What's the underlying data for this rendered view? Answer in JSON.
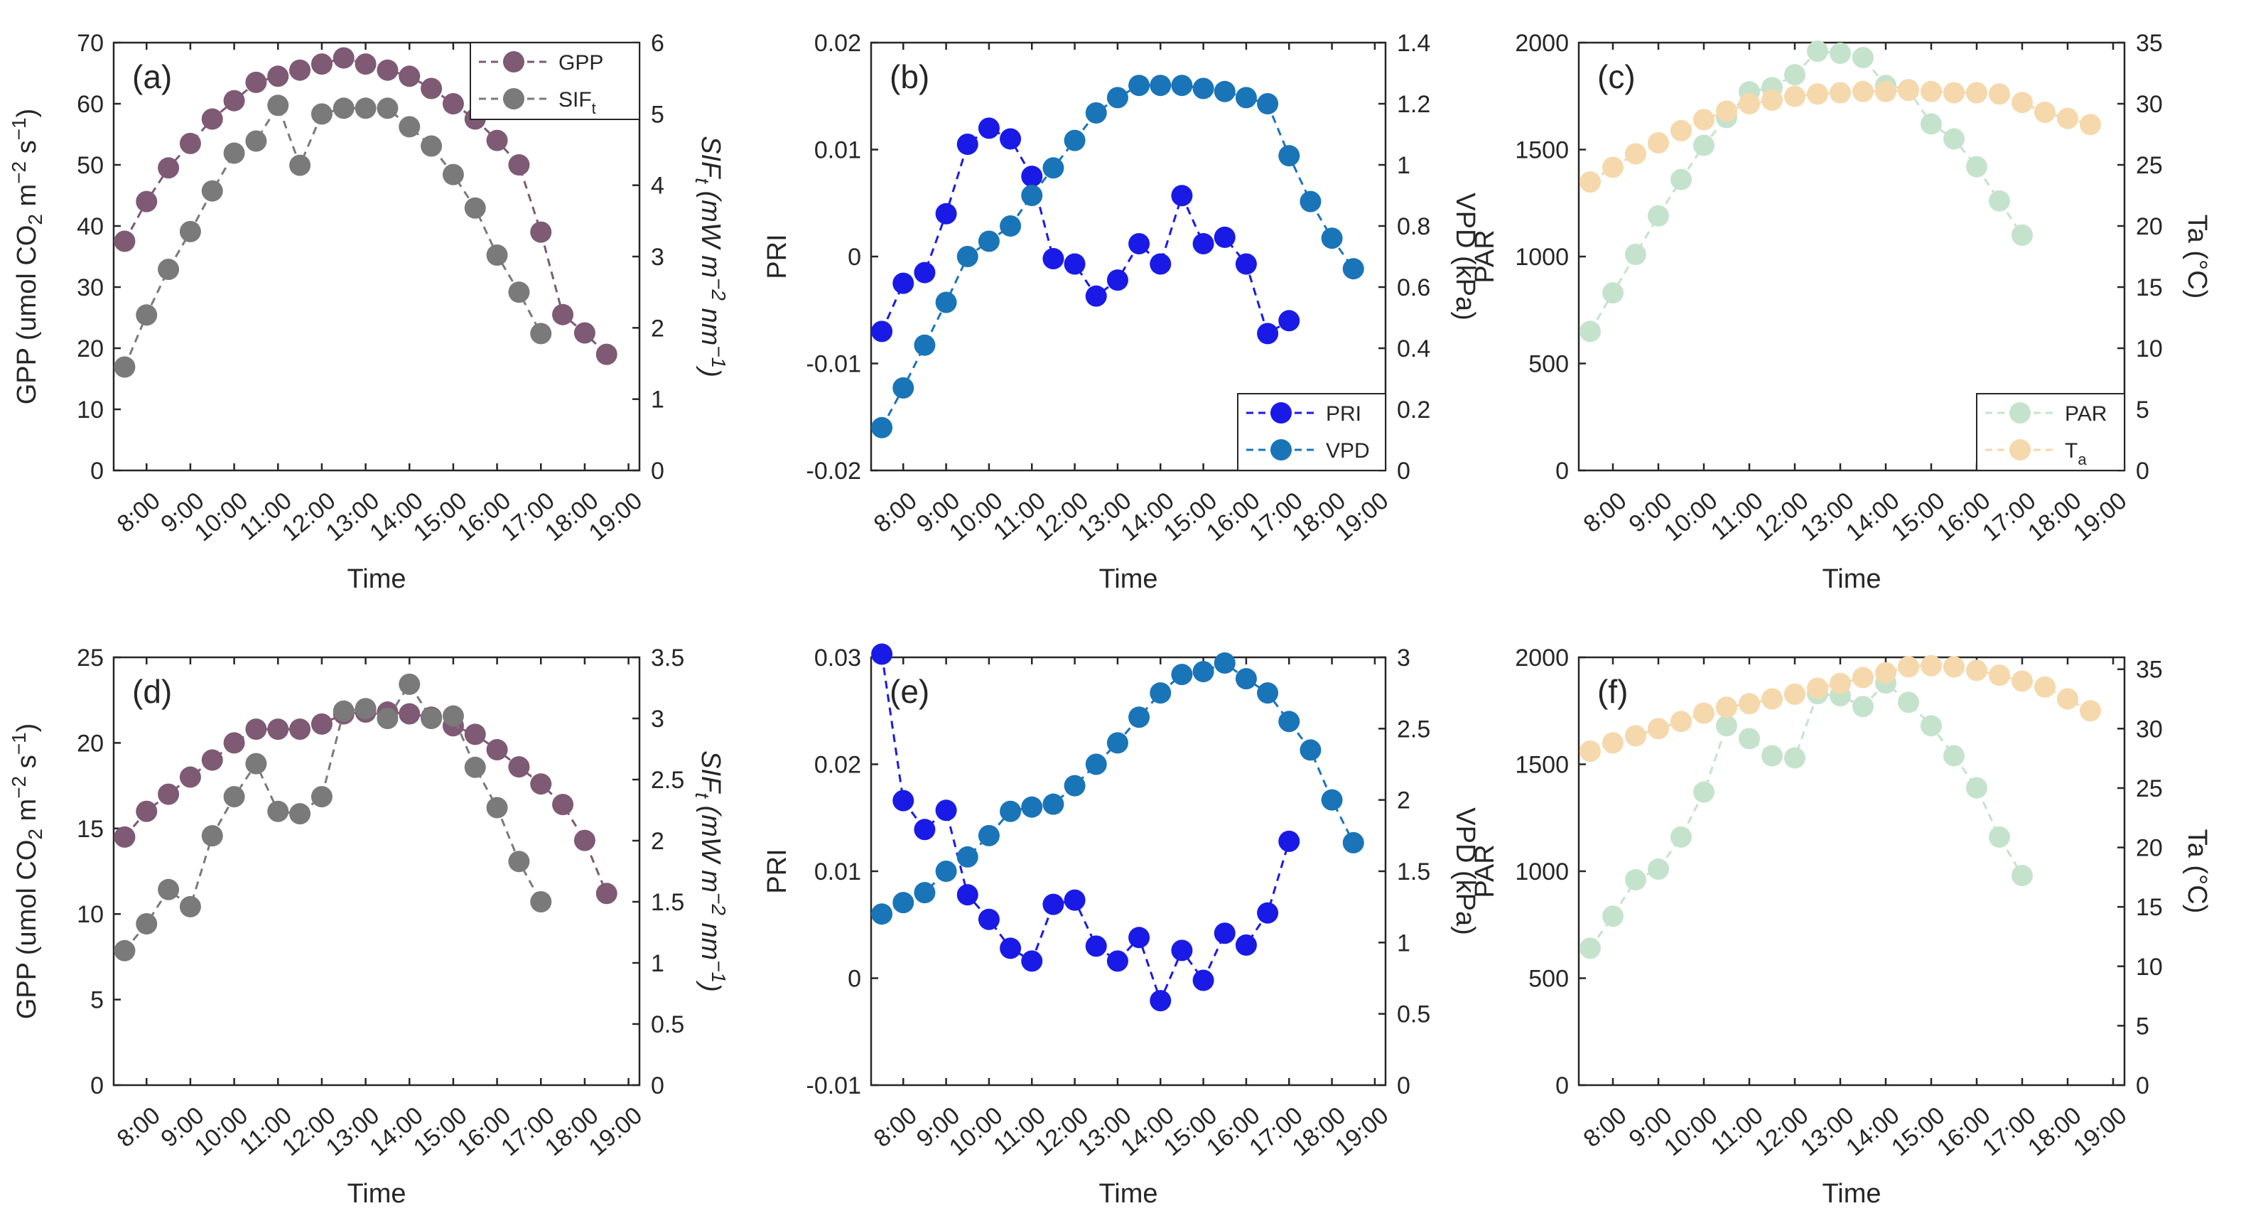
{
  "chart_data": [
    {
      "id": "a",
      "type": "line",
      "panel_label": "(a)",
      "xlabel": "Time",
      "x_ticks": [
        "8:00",
        "9:00",
        "10:00",
        "11:00",
        "12:00",
        "13:00",
        "14:00",
        "15:00",
        "16:00",
        "17:00",
        "18:00",
        "19:00"
      ],
      "xlim": [
        7.25,
        19.25
      ],
      "left_axis": {
        "label": "GPP (umol CO2 m-2 s-1)",
        "ylim": [
          0,
          70
        ],
        "ticks": [
          0,
          10,
          20,
          30,
          40,
          50,
          60,
          70
        ],
        "tick_labels": [
          "0",
          "10",
          "20",
          "30",
          "40",
          "50",
          "60",
          "70"
        ]
      },
      "right_axis": {
        "label": "SIFt (mW m-2 nm-1)",
        "ylim": [
          0,
          6
        ],
        "ticks": [
          0,
          1,
          2,
          3,
          4,
          5,
          6
        ],
        "tick_labels": [
          "0",
          "1",
          "2",
          "3",
          "4",
          "5",
          "6"
        ]
      },
      "legend": {
        "position": "top-right"
      },
      "series": [
        {
          "name": "GPP",
          "sub": "",
          "axis": "left",
          "color": "#7e5a74",
          "x": [
            7.5,
            8,
            8.5,
            9,
            9.5,
            10,
            10.5,
            11,
            11.5,
            12,
            12.5,
            13,
            13.5,
            14,
            14.5,
            15,
            15.5,
            16,
            16.5,
            17,
            17.5,
            18,
            18.5
          ],
          "y": [
            37.5,
            44,
            49.5,
            53.5,
            57.5,
            60.5,
            63.5,
            64.5,
            65.5,
            66.5,
            67.5,
            66.5,
            65.5,
            64.5,
            62.5,
            60,
            57.5,
            54,
            50,
            39,
            25.5,
            22.5,
            19
          ]
        },
        {
          "name": "SIF",
          "sub": "t",
          "axis": "right",
          "color": "#7a7a7a",
          "x": [
            7.5,
            8,
            8.5,
            9,
            9.5,
            10,
            10.5,
            11,
            11.5,
            12,
            12.5,
            13,
            13.5,
            14,
            14.5,
            15,
            15.5,
            16,
            16.5,
            17
          ],
          "y": [
            1.45,
            2.18,
            2.82,
            3.35,
            3.92,
            4.45,
            4.62,
            5.12,
            4.28,
            5.0,
            5.08,
            5.08,
            5.08,
            4.82,
            4.55,
            4.15,
            3.68,
            3.02,
            2.5,
            1.92
          ]
        }
      ]
    },
    {
      "id": "b",
      "type": "line",
      "panel_label": "(b)",
      "xlabel": "Time",
      "x_ticks": [
        "8:00",
        "9:00",
        "10:00",
        "11:00",
        "12:00",
        "13:00",
        "14:00",
        "15:00",
        "16:00",
        "17:00",
        "18:00",
        "19:00"
      ],
      "xlim": [
        7.25,
        19.25
      ],
      "left_axis": {
        "label": "PRI",
        "ylim": [
          -0.02,
          0.02
        ],
        "ticks": [
          -0.02,
          -0.01,
          0,
          0.01,
          0.02
        ],
        "tick_labels": [
          "-0.02",
          "-0.01",
          "0",
          "0.01",
          "0.02"
        ]
      },
      "right_axis": {
        "label": "VPD (kPa)",
        "ylim": [
          0,
          1.4
        ],
        "ticks": [
          0,
          0.2,
          0.4,
          0.6,
          0.8,
          1,
          1.2,
          1.4
        ],
        "tick_labels": [
          "0",
          "0.2",
          "0.4",
          "0.6",
          "0.8",
          "1",
          "1.2",
          "1.4"
        ]
      },
      "legend": {
        "position": "bottom-right"
      },
      "series": [
        {
          "name": "PRI",
          "sub": "",
          "axis": "left",
          "color": "#1a1ae6",
          "x": [
            7.5,
            8,
            8.5,
            9,
            9.5,
            10,
            10.5,
            11,
            11.5,
            12,
            12.5,
            13,
            13.5,
            14,
            14.5,
            15,
            15.5,
            16,
            16.5,
            17
          ],
          "y": [
            -0.007,
            -0.0025,
            -0.0015,
            0.004,
            0.0105,
            0.012,
            0.011,
            0.0075,
            -0.0002,
            -0.0007,
            -0.0037,
            -0.0022,
            0.0012,
            -0.0007,
            0.0057,
            0.0012,
            0.0018,
            -0.0007,
            -0.0072,
            -0.006
          ]
        },
        {
          "name": "VPD",
          "sub": "",
          "axis": "right",
          "color": "#1a74b8",
          "x": [
            7.5,
            8,
            8.5,
            9,
            9.5,
            10,
            10.5,
            11,
            11.5,
            12,
            12.5,
            13,
            13.5,
            14,
            14.5,
            15,
            15.5,
            16,
            16.5,
            17,
            17.5,
            18,
            18.5
          ],
          "y": [
            0.14,
            0.27,
            0.41,
            0.55,
            0.7,
            0.75,
            0.8,
            0.9,
            0.99,
            1.08,
            1.17,
            1.22,
            1.26,
            1.26,
            1.26,
            1.25,
            1.24,
            1.22,
            1.2,
            1.03,
            0.88,
            0.76,
            0.66
          ]
        }
      ]
    },
    {
      "id": "c",
      "type": "line",
      "panel_label": "(c)",
      "xlabel": "Time",
      "x_ticks": [
        "8:00",
        "9:00",
        "10:00",
        "11:00",
        "12:00",
        "13:00",
        "14:00",
        "15:00",
        "16:00",
        "17:00",
        "18:00",
        "19:00"
      ],
      "xlim": [
        7.25,
        19.25
      ],
      "left_axis": {
        "label": "PAR",
        "ylim": [
          0,
          2000
        ],
        "ticks": [
          0,
          500,
          1000,
          1500,
          2000
        ],
        "tick_labels": [
          "0",
          "500",
          "1000",
          "1500",
          "2000"
        ]
      },
      "right_axis": {
        "label": "Ta (°C)",
        "ylim": [
          0,
          35
        ],
        "ticks": [
          0,
          5,
          10,
          15,
          20,
          25,
          30,
          35
        ],
        "tick_labels": [
          "0",
          "5",
          "10",
          "15",
          "20",
          "25",
          "30",
          "35"
        ]
      },
      "legend": {
        "position": "bottom-right"
      },
      "series": [
        {
          "name": "PAR",
          "sub": "",
          "axis": "left",
          "color": "#c5e3cc",
          "x": [
            7.5,
            8,
            8.5,
            9,
            9.5,
            10,
            10.5,
            11,
            11.5,
            12,
            12.5,
            13,
            13.5,
            14,
            14.5,
            15,
            15.5,
            16,
            16.5,
            17
          ],
          "y": [
            650,
            830,
            1010,
            1190,
            1360,
            1520,
            1650,
            1770,
            1790,
            1850,
            1960,
            1950,
            1930,
            1800,
            1780,
            1620,
            1550,
            1420,
            1260,
            1100
          ]
        },
        {
          "name": "T",
          "sub": "a",
          "axis": "right",
          "color": "#f5d8ac",
          "x": [
            7.5,
            8,
            8.5,
            9,
            9.5,
            10,
            10.5,
            11,
            11.5,
            12,
            12.5,
            13,
            13.5,
            14,
            14.5,
            15,
            15.5,
            16,
            16.5,
            17,
            17.5,
            18,
            18.5
          ],
          "y": [
            23.6,
            24.8,
            25.9,
            26.8,
            27.8,
            28.7,
            29.4,
            30.0,
            30.3,
            30.6,
            30.8,
            30.9,
            31.0,
            31.0,
            31.1,
            31.0,
            30.9,
            30.9,
            30.8,
            30.1,
            29.3,
            28.8,
            28.3
          ]
        }
      ]
    },
    {
      "id": "d",
      "type": "line",
      "panel_label": "(d)",
      "xlabel": "Time",
      "x_ticks": [
        "8:00",
        "9:00",
        "10:00",
        "11:00",
        "12:00",
        "13:00",
        "14:00",
        "15:00",
        "16:00",
        "17:00",
        "18:00",
        "19:00"
      ],
      "xlim": [
        7.25,
        19.25
      ],
      "left_axis": {
        "label": "GPP (umol CO2 m-2 s-1)",
        "ylim": [
          0,
          25
        ],
        "ticks": [
          0,
          5,
          10,
          15,
          20,
          25
        ],
        "tick_labels": [
          "0",
          "5",
          "10",
          "15",
          "20",
          "25"
        ]
      },
      "right_axis": {
        "label": "SIFt (mW m-2 nm-1)",
        "ylim": [
          0,
          3.5
        ],
        "ticks": [
          0,
          0.5,
          1,
          1.5,
          2,
          2.5,
          3,
          3.5
        ],
        "tick_labels": [
          "0",
          "0.5",
          "1",
          "1.5",
          "2",
          "2.5",
          "3",
          "3.5"
        ]
      },
      "legend": {
        "position": "none"
      },
      "series": [
        {
          "name": "GPP",
          "sub": "",
          "axis": "left",
          "color": "#7e5a74",
          "x": [
            7.5,
            8,
            8.5,
            9,
            9.5,
            10,
            10.5,
            11,
            11.5,
            12,
            12.5,
            13,
            13.5,
            14,
            14.5,
            15,
            15.5,
            16,
            16.5,
            17,
            17.5,
            18,
            18.5
          ],
          "y": [
            14.5,
            16,
            17,
            18,
            19,
            20,
            20.8,
            20.8,
            20.8,
            21.1,
            21.7,
            21.8,
            21.8,
            21.7,
            21.5,
            21.0,
            20.5,
            19.6,
            18.6,
            17.6,
            16.4,
            14.3,
            11.2
          ]
        },
        {
          "name": "SIF",
          "sub": "t",
          "axis": "right",
          "color": "#7a7a7a",
          "x": [
            7.5,
            8,
            8.5,
            9,
            9.5,
            10,
            10.5,
            11,
            11.5,
            12,
            12.5,
            13,
            13.5,
            14,
            14.5,
            15,
            15.5,
            16,
            16.5,
            17
          ],
          "y": [
            1.1,
            1.32,
            1.6,
            1.46,
            2.04,
            2.36,
            2.63,
            2.24,
            2.22,
            2.36,
            3.06,
            3.08,
            3.0,
            3.28,
            3.0,
            3.02,
            2.6,
            2.27,
            1.83,
            1.5
          ]
        }
      ]
    },
    {
      "id": "e",
      "type": "line",
      "panel_label": "(e)",
      "xlabel": "Time",
      "x_ticks": [
        "8:00",
        "9:00",
        "10:00",
        "11:00",
        "12:00",
        "13:00",
        "14:00",
        "15:00",
        "16:00",
        "17:00",
        "18:00",
        "19:00"
      ],
      "xlim": [
        7.25,
        19.25
      ],
      "left_axis": {
        "label": "PRI",
        "ylim": [
          -0.01,
          0.03
        ],
        "ticks": [
          -0.01,
          0,
          0.01,
          0.02,
          0.03
        ],
        "tick_labels": [
          "-0.01",
          "0",
          "0.01",
          "0.02",
          "0.03"
        ]
      },
      "right_axis": {
        "label": "VPD (kPa)",
        "ylim": [
          0,
          3
        ],
        "ticks": [
          0,
          0.5,
          1,
          1.5,
          2,
          2.5,
          3
        ],
        "tick_labels": [
          "0",
          "0.5",
          "1",
          "1.5",
          "2",
          "2.5",
          "3"
        ]
      },
      "legend": {
        "position": "none"
      },
      "series": [
        {
          "name": "PRI",
          "sub": "",
          "axis": "left",
          "color": "#1a1ae6",
          "x": [
            7.5,
            8,
            8.5,
            9,
            9.5,
            10,
            10.5,
            11,
            11.5,
            12,
            12.5,
            13,
            13.5,
            14,
            14.5,
            15,
            15.5,
            16,
            16.5,
            17
          ],
          "y": [
            0.0303,
            0.0166,
            0.0139,
            0.0157,
            0.0078,
            0.0055,
            0.0028,
            0.0016,
            0.0069,
            0.0073,
            0.003,
            0.0016,
            0.0038,
            -0.0021,
            0.0026,
            -0.0002,
            0.0042,
            0.0031,
            0.0061,
            0.0128
          ]
        },
        {
          "name": "VPD",
          "sub": "",
          "axis": "right",
          "color": "#1a74b8",
          "x": [
            7.5,
            8,
            8.5,
            9,
            9.5,
            10,
            10.5,
            11,
            11.5,
            12,
            12.5,
            13,
            13.5,
            14,
            14.5,
            15,
            15.5,
            16,
            16.5,
            17,
            17.5,
            18,
            18.5
          ],
          "y": [
            1.2,
            1.28,
            1.35,
            1.5,
            1.6,
            1.75,
            1.92,
            1.95,
            1.97,
            2.1,
            2.25,
            2.4,
            2.58,
            2.75,
            2.88,
            2.9,
            2.96,
            2.85,
            2.75,
            2.55,
            2.35,
            2.0,
            1.7
          ]
        }
      ]
    },
    {
      "id": "f",
      "type": "line",
      "panel_label": "(f)",
      "xlabel": "Time",
      "x_ticks": [
        "8:00",
        "9:00",
        "10:00",
        "11:00",
        "12:00",
        "13:00",
        "14:00",
        "15:00",
        "16:00",
        "17:00",
        "18:00",
        "19:00"
      ],
      "xlim": [
        7.25,
        19.25
      ],
      "left_axis": {
        "label": "PAR",
        "ylim": [
          0,
          2000
        ],
        "ticks": [
          0,
          500,
          1000,
          1500,
          2000
        ],
        "tick_labels": [
          "0",
          "500",
          "1000",
          "1500",
          "2000"
        ]
      },
      "right_axis": {
        "label": "Ta (°C)",
        "ylim": [
          0,
          36
        ],
        "ticks": [
          0,
          5,
          10,
          15,
          20,
          25,
          30,
          35
        ],
        "tick_labels": [
          "0",
          "5",
          "10",
          "15",
          "20",
          "25",
          "30",
          "35"
        ]
      },
      "legend": {
        "position": "none"
      },
      "series": [
        {
          "name": "PAR",
          "sub": "",
          "axis": "left",
          "color": "#c5e3cc",
          "x": [
            7.5,
            8,
            8.5,
            9,
            9.5,
            10,
            10.5,
            11,
            11.5,
            12,
            12.5,
            13,
            13.5,
            14,
            14.5,
            15,
            15.5,
            16,
            16.5,
            17
          ],
          "y": [
            640,
            790,
            960,
            1010,
            1160,
            1370,
            1680,
            1620,
            1540,
            1530,
            1830,
            1820,
            1770,
            1880,
            1790,
            1680,
            1540,
            1390,
            1160,
            980
          ]
        },
        {
          "name": "T",
          "sub": "a",
          "axis": "right",
          "color": "#f5d8ac",
          "x": [
            7.5,
            8,
            8.5,
            9,
            9.5,
            10,
            10.5,
            11,
            11.5,
            12,
            12.5,
            13,
            13.5,
            14,
            14.5,
            15,
            15.5,
            16,
            16.5,
            17,
            17.5,
            18,
            18.5
          ],
          "y": [
            28.1,
            28.8,
            29.4,
            30.0,
            30.6,
            31.3,
            31.8,
            32.1,
            32.5,
            32.9,
            33.4,
            33.8,
            34.3,
            34.7,
            35.2,
            35.3,
            35.2,
            34.9,
            34.5,
            34.0,
            33.5,
            32.5,
            31.5
          ]
        }
      ]
    }
  ]
}
